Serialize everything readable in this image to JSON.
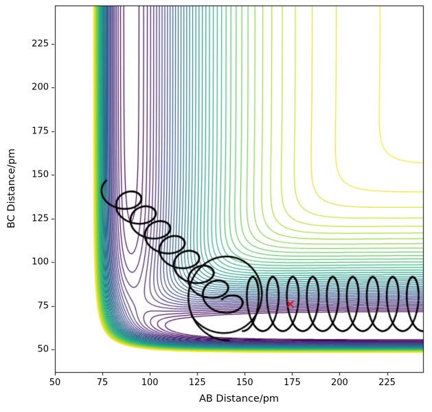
{
  "chart_data": {
    "type": "contour",
    "title": "",
    "xlabel": "AB Distance/pm",
    "ylabel": "BC Distance/pm",
    "xlim": [
      50,
      244
    ],
    "ylim": [
      37,
      247
    ],
    "xticks": [
      50,
      75,
      100,
      125,
      150,
      175,
      200,
      225
    ],
    "yticks": [
      50,
      75,
      100,
      125,
      150,
      175,
      200,
      225
    ],
    "grid": false,
    "legend": false,
    "background": "#ffffff",
    "colormap": "viridis",
    "colormap_stops": [
      "#440154",
      "#482878",
      "#3e4989",
      "#31688e",
      "#26828e",
      "#1f9e89",
      "#35b779",
      "#6ece58",
      "#b5de2b",
      "#fde725"
    ],
    "contour": {
      "description": "LEPS-style collinear A-B-C reaction potential energy surface; entrance valley along AB ~ 90 pm, exit valley along BC ~ 62 pm, steep repulsive walls at small distances, flat plateau (no contours) at large AB and BC",
      "n_levels": 40,
      "level_min": -0.98,
      "level_max": -0.02,
      "line_width": 1.25,
      "sato": 0.0,
      "pairs": {
        "AB": {
          "D": 1.0,
          "a": 0.035,
          "r0": 90
        },
        "BC": {
          "D": 1.15,
          "a": 0.05,
          "r0": 62
        },
        "AC": {
          "D": 0.05,
          "a": 0.02,
          "r0": 150
        }
      }
    },
    "trajectory": {
      "description": "classical trajectory dots: AB vibrating while C approaches (diagonal coil from ~(75,148) to ~(150,65)), one wide loop near the corner, then product BC vibration while A departs (looping zigzag along exit channel to right edge)",
      "color": "#000000",
      "marker_radius": 1.4,
      "phases": [
        {
          "kind": "coil",
          "x_start": 82,
          "y_start": 141,
          "x_end": 143,
          "y_end": 73,
          "rx": 8.5,
          "ry": 7,
          "turns": 8,
          "phase0": 2.2,
          "n": 680
        },
        {
          "kind": "coil",
          "x_start": 138,
          "y_start": 83,
          "x_end": 141,
          "y_end": 78,
          "rx": 20,
          "ry": 23,
          "turns": 1.15,
          "phase0": 3.8,
          "n": 190
        },
        {
          "kind": "cycloid",
          "x_start": 149,
          "x_end": 248,
          "y_center": 76,
          "y_amp": 15.5,
          "x_amp": 5.5,
          "periods": 9.4,
          "n": 980
        }
      ]
    },
    "start_marker": {
      "x": 174,
      "y": 76,
      "symbol": "x",
      "color": "#e50000",
      "size": 9
    }
  },
  "axes_style": {
    "spine_color": "#000000",
    "tick_color": "#000000",
    "text_color": "#000000"
  }
}
